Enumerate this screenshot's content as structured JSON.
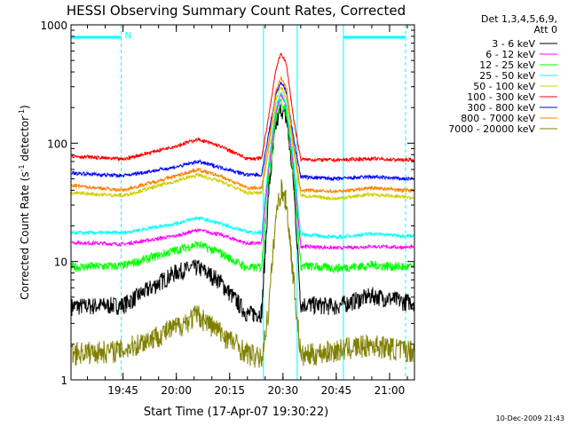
{
  "chart_data": {
    "type": "line",
    "title": "HESSI Observing Summary Count Rates, Corrected",
    "xlabel": "Start Time (17-Apr-07 19:30:22)",
    "ylabel_main": "Corrected Count Rate (s",
    "ylabel_sup1": "-1",
    "ylabel_mid": " detector",
    "ylabel_sup2": "-1",
    "ylabel_end": ")",
    "y_scale": "log",
    "ylim": [
      1,
      1000
    ],
    "xlim": [
      "19:30:22",
      "21:07"
    ],
    "x_ticks": [
      "19:45",
      "20:00",
      "20:15",
      "20:30",
      "20:45",
      "21:00"
    ],
    "y_ticks": [
      "1",
      "10",
      "100",
      "1000"
    ],
    "legend_header_1": "Det 1,3,4,5,6,9,",
    "legend_header_2": "Att 0",
    "legend_position": "top-right",
    "timestamp": "10-Dec-2009 21:43",
    "night_label": "N",
    "night_color": "#00ffff",
    "night_intervals": [
      [
        "19:30:22",
        "19:44:30"
      ],
      [
        "20:47:00",
        "21:04:30"
      ]
    ],
    "data_gaps": [
      [
        "20:24:30",
        "20:34:00"
      ]
    ],
    "series": [
      {
        "name": "3 - 6 keV",
        "color": "#000000",
        "points": [
          [
            "19:30:22",
            4.2
          ],
          [
            "19:45",
            4.3
          ],
          [
            "20:00",
            8.2
          ],
          [
            "20:06",
            9.0
          ],
          [
            "20:12",
            7.0
          ],
          [
            "20:20",
            3.6
          ],
          [
            "20:24",
            3.7
          ],
          [
            "20:26",
            40
          ],
          [
            "20:28",
            140
          ],
          [
            "20:29:30",
            200
          ],
          [
            "20:31",
            160
          ],
          [
            "20:33",
            45
          ],
          [
            "20:35",
            4.4
          ],
          [
            "20:45",
            4.2
          ],
          [
            "20:55",
            5.2
          ],
          [
            "21:04",
            4.6
          ]
        ]
      },
      {
        "name": "6 - 12 keV",
        "color": "#ff00ff",
        "points": [
          [
            "19:30:22",
            14.5
          ],
          [
            "19:45",
            14.0
          ],
          [
            "20:00",
            16.5
          ],
          [
            "20:06",
            18.5
          ],
          [
            "20:12",
            17.0
          ],
          [
            "20:20",
            14.2
          ],
          [
            "20:24",
            14.3
          ],
          [
            "20:26",
            60
          ],
          [
            "20:28",
            180
          ],
          [
            "20:29:30",
            260
          ],
          [
            "20:31",
            200
          ],
          [
            "20:33",
            60
          ],
          [
            "20:35",
            13.5
          ],
          [
            "20:45",
            13.0
          ],
          [
            "20:55",
            13.4
          ],
          [
            "21:04",
            13.2
          ]
        ]
      },
      {
        "name": "12 - 25 keV",
        "color": "#00ff00",
        "points": [
          [
            "19:30:22",
            9.0
          ],
          [
            "19:45",
            9.2
          ],
          [
            "20:00",
            12.5
          ],
          [
            "20:06",
            14.0
          ],
          [
            "20:12",
            12.0
          ],
          [
            "20:20",
            8.8
          ],
          [
            "20:24",
            9.0
          ],
          [
            "20:26",
            50
          ],
          [
            "20:28",
            160
          ],
          [
            "20:29:30",
            230
          ],
          [
            "20:31",
            180
          ],
          [
            "20:33",
            55
          ],
          [
            "20:35",
            9.2
          ],
          [
            "20:45",
            8.8
          ],
          [
            "20:55",
            9.3
          ],
          [
            "21:04",
            9.0
          ]
        ]
      },
      {
        "name": "25 - 50 keV",
        "color": "#00ffff",
        "points": [
          [
            "19:30:22",
            17.5
          ],
          [
            "19:45",
            17.5
          ],
          [
            "20:00",
            21.0
          ],
          [
            "20:06",
            23.5
          ],
          [
            "20:12",
            21.0
          ],
          [
            "20:20",
            17.8
          ],
          [
            "20:24",
            17.5
          ],
          [
            "20:26",
            70
          ],
          [
            "20:28",
            200
          ],
          [
            "20:29:30",
            270
          ],
          [
            "20:31",
            210
          ],
          [
            "20:33",
            70
          ],
          [
            "20:35",
            17.0
          ],
          [
            "20:45",
            16.0
          ],
          [
            "20:55",
            17.2
          ],
          [
            "21:04",
            16.5
          ]
        ]
      },
      {
        "name": "50 - 100 keV",
        "color": "#d0d000",
        "points": [
          [
            "19:30:22",
            38
          ],
          [
            "19:45",
            36
          ],
          [
            "20:00",
            48
          ],
          [
            "20:06",
            54
          ],
          [
            "20:12",
            48
          ],
          [
            "20:20",
            38
          ],
          [
            "20:24",
            38
          ],
          [
            "20:26",
            90
          ],
          [
            "20:28",
            230
          ],
          [
            "20:29:30",
            300
          ],
          [
            "20:31",
            240
          ],
          [
            "20:33",
            85
          ],
          [
            "20:35",
            36
          ],
          [
            "20:45",
            34
          ],
          [
            "20:55",
            37
          ],
          [
            "21:04",
            35
          ]
        ]
      },
      {
        "name": "100 - 300 keV",
        "color": "#ff0000",
        "points": [
          [
            "19:30:22",
            78
          ],
          [
            "19:45",
            73
          ],
          [
            "20:00",
            95
          ],
          [
            "20:06",
            108
          ],
          [
            "20:12",
            95
          ],
          [
            "20:20",
            74
          ],
          [
            "20:24",
            74
          ],
          [
            "20:26",
            170
          ],
          [
            "20:28",
            420
          ],
          [
            "20:29:30",
            580
          ],
          [
            "20:31",
            460
          ],
          [
            "20:33",
            160
          ],
          [
            "20:35",
            73
          ],
          [
            "20:45",
            72
          ],
          [
            "20:55",
            74
          ],
          [
            "21:04",
            72
          ]
        ]
      },
      {
        "name": "300 - 800 keV",
        "color": "#0000ff",
        "points": [
          [
            "19:30:22",
            56
          ],
          [
            "19:45",
            53
          ],
          [
            "20:00",
            63
          ],
          [
            "20:06",
            70
          ],
          [
            "20:12",
            63
          ],
          [
            "20:20",
            54
          ],
          [
            "20:24",
            54
          ],
          [
            "20:26",
            120
          ],
          [
            "20:28",
            260
          ],
          [
            "20:29:30",
            330
          ],
          [
            "20:31",
            270
          ],
          [
            "20:33",
            110
          ],
          [
            "20:35",
            52
          ],
          [
            "20:45",
            50
          ],
          [
            "20:55",
            52
          ],
          [
            "21:04",
            50
          ]
        ]
      },
      {
        "name": "800 - 7000 keV",
        "color": "#ff8000",
        "points": [
          [
            "19:30:22",
            44
          ],
          [
            "19:45",
            40
          ],
          [
            "20:00",
            53
          ],
          [
            "20:06",
            60
          ],
          [
            "20:12",
            53
          ],
          [
            "20:20",
            42
          ],
          [
            "20:24",
            42
          ],
          [
            "20:26",
            100
          ],
          [
            "20:28",
            280
          ],
          [
            "20:29:30",
            360
          ],
          [
            "20:31",
            290
          ],
          [
            "20:33",
            95
          ],
          [
            "20:35",
            40
          ],
          [
            "20:45",
            39
          ],
          [
            "20:55",
            42
          ],
          [
            "21:04",
            40
          ]
        ]
      },
      {
        "name": "7000 - 20000 keV",
        "color": "#808000",
        "points": [
          [
            "19:30:22",
            1.7
          ],
          [
            "19:45",
            1.8
          ],
          [
            "20:00",
            2.8
          ],
          [
            "20:06",
            3.6
          ],
          [
            "20:12",
            2.6
          ],
          [
            "20:20",
            1.7
          ],
          [
            "20:24",
            1.5
          ],
          [
            "20:26",
            4
          ],
          [
            "20:28",
            24
          ],
          [
            "20:29:30",
            42
          ],
          [
            "20:31",
            32
          ],
          [
            "20:33",
            7
          ],
          [
            "20:35",
            1.6
          ],
          [
            "20:45",
            1.8
          ],
          [
            "20:55",
            2.0
          ],
          [
            "21:04",
            1.8
          ]
        ]
      }
    ]
  }
}
